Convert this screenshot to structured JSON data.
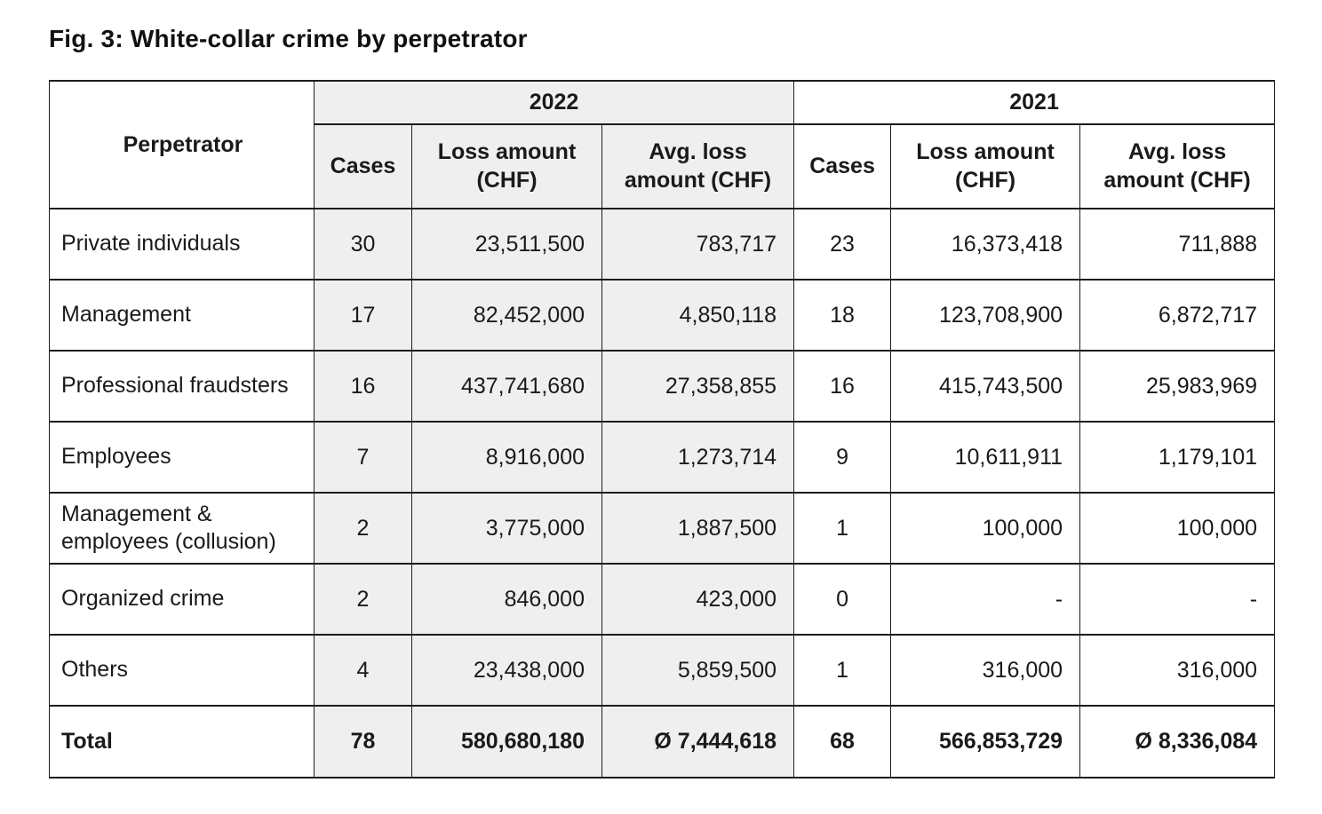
{
  "figure": {
    "title": "Fig. 3: White-collar crime by perpetrator"
  },
  "table": {
    "perpetrator_header": "Perpetrator",
    "year_groups": [
      {
        "year": "2022",
        "highlighted": true
      },
      {
        "year": "2021",
        "highlighted": false
      }
    ],
    "sub_headers": [
      "Cases",
      "Loss amount (CHF)",
      "Avg. loss amount (CHF)"
    ],
    "rows": [
      {
        "perpetrator": "Private individuals",
        "values": [
          "30",
          "23,511,500",
          "783,717",
          "23",
          "16,373,418",
          "711,888"
        ]
      },
      {
        "perpetrator": "Management",
        "values": [
          "17",
          "82,452,000",
          "4,850,118",
          "18",
          "123,708,900",
          "6,872,717"
        ]
      },
      {
        "perpetrator": "Professional fraudsters",
        "values": [
          "16",
          "437,741,680",
          "27,358,855",
          "16",
          "415,743,500",
          "25,983,969"
        ]
      },
      {
        "perpetrator": "Employees",
        "values": [
          "7",
          "8,916,000",
          "1,273,714",
          "9",
          "10,611,911",
          "1,179,101"
        ]
      },
      {
        "perpetrator": "Management & employees (collusion)",
        "values": [
          "2",
          "3,775,000",
          "1,887,500",
          "1",
          "100,000",
          "100,000"
        ]
      },
      {
        "perpetrator": "Organized crime",
        "values": [
          "2",
          "846,000",
          "423,000",
          "0",
          "-",
          "-"
        ]
      },
      {
        "perpetrator": "Others",
        "values": [
          "4",
          "23,438,000",
          "5,859,500",
          "1",
          "316,000",
          "316,000"
        ]
      }
    ],
    "total_row": {
      "perpetrator": "Total",
      "values": [
        "78",
        "580,680,180",
        "Ø 7,444,618",
        "68",
        "566,853,729",
        "Ø 8,336,084"
      ]
    }
  },
  "colors": {
    "highlight_bg": "#efefef",
    "border": "#1c1c1c",
    "text": "#1a1a1a"
  },
  "chart_data": {
    "type": "table",
    "title": "Fig. 3: White-collar crime by perpetrator",
    "columns": [
      "Perpetrator",
      "2022 Cases",
      "2022 Loss amount (CHF)",
      "2022 Avg. loss amount (CHF)",
      "2021 Cases",
      "2021 Loss amount (CHF)",
      "2021 Avg. loss amount (CHF)"
    ],
    "rows": [
      [
        "Private individuals",
        30,
        23511500,
        783717,
        23,
        16373418,
        711888
      ],
      [
        "Management",
        17,
        82452000,
        4850118,
        18,
        123708900,
        6872717
      ],
      [
        "Professional fraudsters",
        16,
        437741680,
        27358855,
        16,
        415743500,
        25983969
      ],
      [
        "Employees",
        7,
        8916000,
        1273714,
        9,
        10611911,
        1179101
      ],
      [
        "Management & employees (collusion)",
        2,
        3775000,
        1887500,
        1,
        100000,
        100000
      ],
      [
        "Organized crime",
        2,
        846000,
        423000,
        0,
        null,
        null
      ],
      [
        "Others",
        4,
        23438000,
        5859500,
        1,
        316000,
        316000
      ],
      [
        "Total",
        78,
        580680180,
        7444618,
        68,
        566853729,
        8336084
      ]
    ]
  }
}
